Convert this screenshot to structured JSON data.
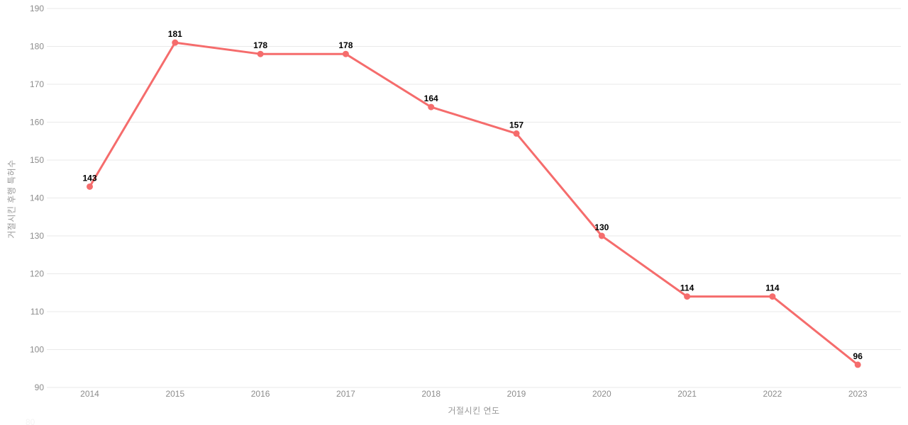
{
  "chart_data": {
    "type": "line",
    "title": "",
    "categories": [
      "2014",
      "2015",
      "2016",
      "2017",
      "2018",
      "2019",
      "2020",
      "2021",
      "2022",
      "2023"
    ],
    "series": [
      {
        "name": "거절시킨 후행 특허수",
        "values": [
          143,
          181,
          178,
          178,
          164,
          157,
          130,
          114,
          114,
          96
        ]
      }
    ],
    "xlabel": "거절시킨 연도",
    "ylabel": "거절시킨 후행 특허수",
    "ylim": [
      90,
      190
    ],
    "yticks": [
      90,
      100,
      110,
      120,
      130,
      140,
      150,
      160,
      170,
      180,
      190
    ],
    "grid": true,
    "legend": false,
    "data_labels": true,
    "partial_bottom_tick": "80"
  },
  "colors": {
    "line": "#f56c6c",
    "point": "#f56c6c",
    "grid": "#e9e9e9",
    "tick_text": "#8c8c8c",
    "axis_title_text": "#999999",
    "data_label_text": "#000000",
    "background": "#ffffff"
  }
}
